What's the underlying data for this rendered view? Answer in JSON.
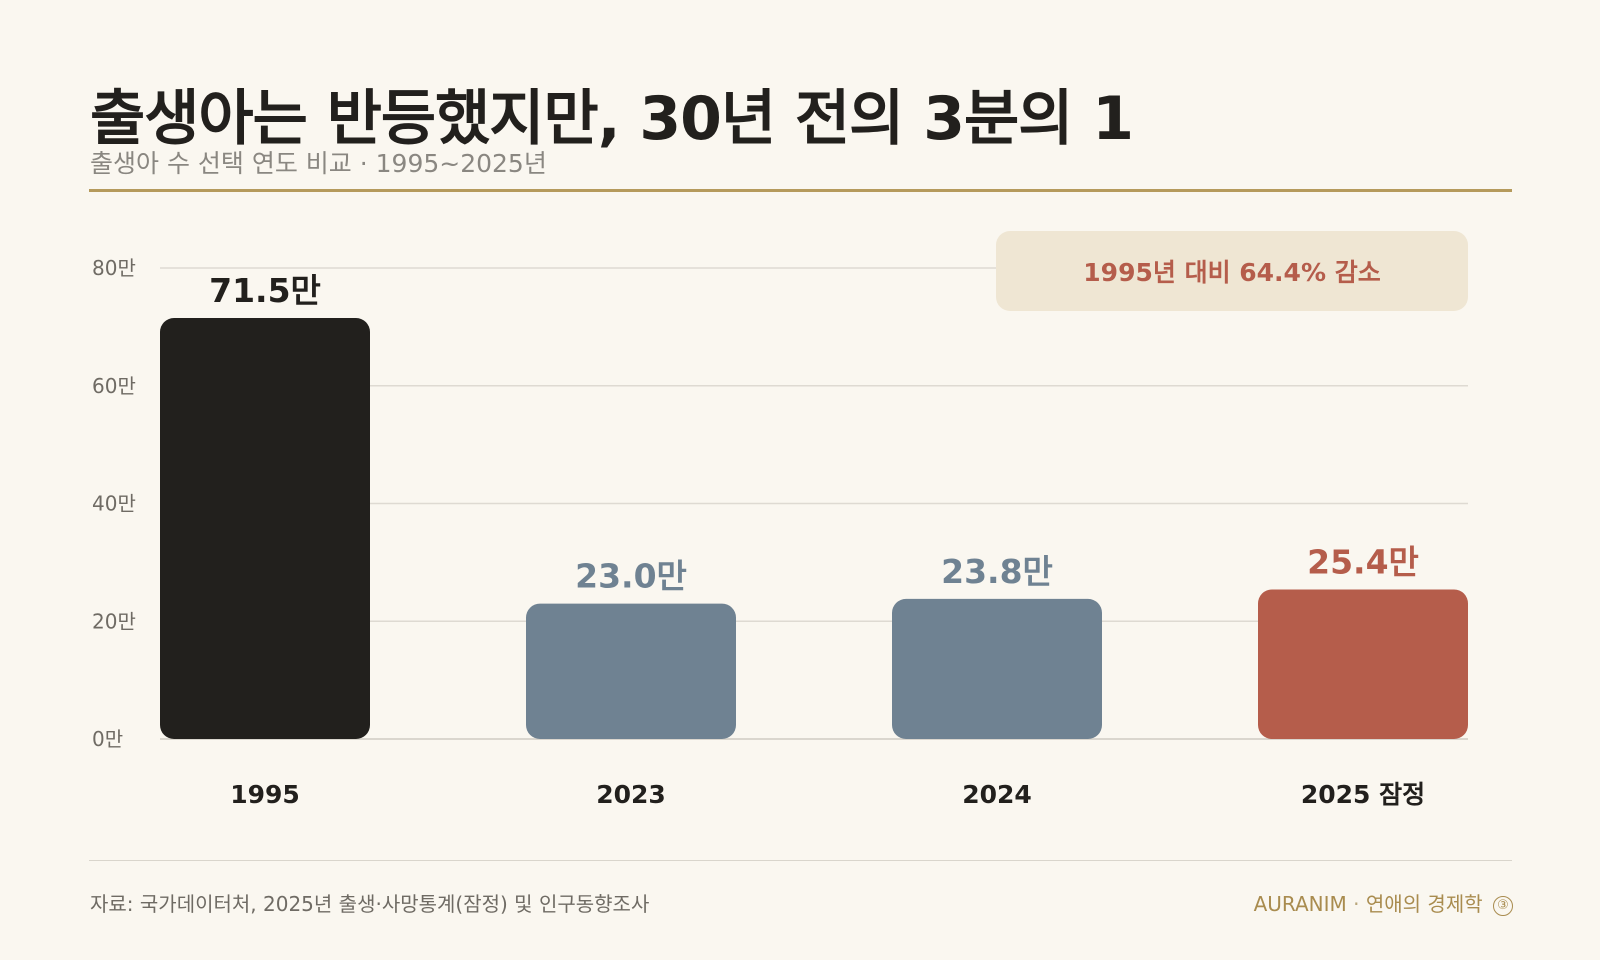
{
  "header": {
    "title": "출생아는 반등했지만, 30년 전의 3분의 1",
    "subtitle": "출생아 수 선택 연도 비교 · 1995~2025년"
  },
  "annotation": {
    "text": "1995년 대비 64.4% 감소"
  },
  "footer": {
    "source": "자료: 국가데이터처, 2025년 출생·사망통계(잠정) 및 인구동향조사",
    "brand": "AURANIM",
    "separator": "·",
    "series_name": "연애의 경제학",
    "page_number": "③"
  },
  "colors": {
    "accent_rule": "#b59a5c",
    "bar_1995": "#22201d",
    "bar_recent": "#6f8292",
    "bar_2025": "#b55d4b",
    "annotation_bg": "#efe6d3",
    "background": "#faf7f0"
  },
  "chart_data": {
    "type": "bar",
    "categories": [
      "1995",
      "2023",
      "2024",
      "2025 잠정"
    ],
    "values": [
      71.5,
      23.0,
      23.8,
      25.4
    ],
    "value_labels": [
      "71.5만",
      "23.0만",
      "23.8만",
      "25.4만"
    ],
    "bar_colors": [
      "#22201d",
      "#6f8292",
      "#6f8292",
      "#b55d4b"
    ],
    "ylim": [
      0,
      80
    ],
    "yticks": [
      0,
      20,
      40,
      60,
      80
    ],
    "ytick_labels": [
      "0만",
      "20만",
      "40만",
      "60만",
      "80만"
    ],
    "grid": true,
    "legend": "none"
  }
}
